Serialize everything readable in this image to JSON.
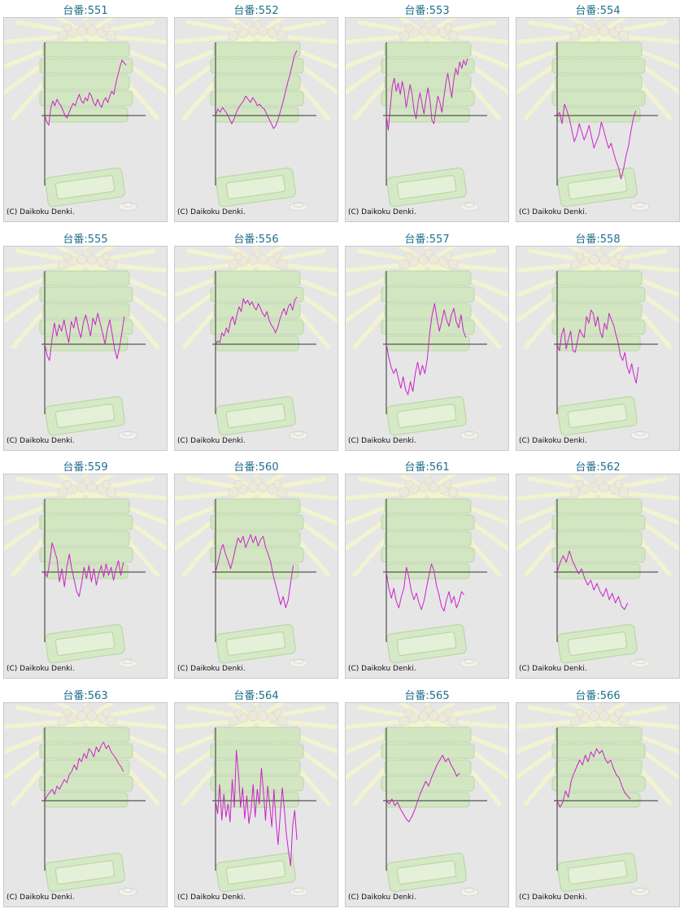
{
  "copyright": "(C) Daikoku Denki.",
  "colors": {
    "line": "#cc22cc",
    "axis": "#333333",
    "title": "#1f6f8b",
    "panel": "#e6e6e6"
  },
  "chart_data": [
    {
      "type": "line",
      "title": "台番:551",
      "ylim": [
        -9,
        9
      ],
      "values": [
        0.0,
        -0.8,
        -1.2,
        1.0,
        1.8,
        1.2,
        2.0,
        1.5,
        1.2,
        0.6,
        0.0,
        -0.3,
        0.4,
        1.0,
        1.5,
        1.2,
        2.0,
        2.6,
        1.8,
        1.5,
        2.2,
        1.8,
        2.8,
        2.4,
        1.6,
        1.2,
        2.0,
        1.4,
        1.0,
        1.8,
        2.2,
        1.6,
        2.4,
        3.0,
        2.6,
        4.0,
        5.0,
        6.0,
        6.8,
        6.5,
        6.2
      ]
    },
    {
      "type": "line",
      "title": "台番:552",
      "ylim": [
        -9,
        9
      ],
      "values": [
        0.0,
        0.8,
        0.4,
        1.0,
        0.6,
        0.2,
        -0.4,
        -1.0,
        -0.4,
        0.4,
        1.0,
        1.4,
        1.8,
        2.4,
        2.0,
        1.6,
        2.2,
        1.8,
        1.2,
        1.4,
        1.0,
        0.8,
        0.2,
        -0.4,
        -1.0,
        -1.6,
        -1.2,
        -0.4,
        0.6,
        1.6,
        2.8,
        4.0,
        5.0,
        6.2,
        7.4,
        8.0
      ]
    },
    {
      "type": "line",
      "title": "台番:553",
      "ylim": [
        -9,
        9
      ],
      "values": [
        0.0,
        -1.8,
        1.0,
        3.6,
        4.6,
        3.0,
        4.0,
        2.6,
        4.2,
        3.0,
        1.0,
        2.4,
        3.8,
        2.6,
        0.6,
        -0.4,
        1.6,
        2.8,
        1.4,
        0.2,
        2.0,
        3.4,
        1.8,
        -0.6,
        -1.0,
        0.8,
        2.4,
        1.6,
        0.4,
        2.2,
        4.0,
        5.2,
        3.6,
        2.2,
        4.4,
        5.8,
        5.0,
        6.6,
        5.8,
        6.8,
        6.2,
        7.0
      ]
    },
    {
      "type": "line",
      "title": "台番:554",
      "ylim": [
        -9,
        9
      ],
      "values": [
        0.0,
        0.4,
        -1.0,
        1.4,
        0.6,
        -0.4,
        -1.8,
        -3.2,
        -2.4,
        -1.0,
        -2.0,
        -3.0,
        -2.2,
        -1.2,
        -2.6,
        -4.0,
        -3.2,
        -2.4,
        -0.8,
        -1.8,
        -3.0,
        -4.0,
        -3.4,
        -4.6,
        -5.6,
        -6.4,
        -7.8,
        -6.6,
        -5.0,
        -3.8,
        -2.0,
        -0.4,
        0.6
      ]
    },
    {
      "type": "line",
      "title": "台番:555",
      "ylim": [
        -9,
        9
      ],
      "values": [
        0.0,
        -1.4,
        -2.0,
        0.6,
        2.6,
        1.0,
        2.4,
        1.6,
        3.0,
        1.4,
        0.2,
        2.8,
        2.0,
        3.4,
        1.8,
        0.8,
        2.6,
        3.6,
        2.4,
        1.0,
        3.2,
        2.4,
        3.8,
        2.6,
        1.4,
        0.0,
        1.8,
        3.0,
        1.2,
        -0.6,
        -1.8,
        -0.4,
        1.4,
        3.4
      ]
    },
    {
      "type": "line",
      "title": "台番:556",
      "ylim": [
        -9,
        9
      ],
      "values": [
        0.0,
        0.4,
        0.2,
        1.4,
        1.0,
        2.0,
        1.4,
        2.8,
        3.4,
        2.4,
        3.6,
        4.6,
        4.0,
        5.6,
        5.0,
        5.4,
        4.8,
        5.2,
        4.6,
        4.2,
        5.0,
        4.4,
        3.8,
        3.4,
        4.0,
        3.0,
        2.4,
        2.0,
        1.4,
        2.0,
        3.0,
        3.8,
        4.4,
        3.6,
        4.6,
        5.0,
        4.2,
        5.4,
        5.8
      ]
    },
    {
      "type": "line",
      "title": "台番:557",
      "ylim": [
        -9,
        9
      ],
      "values": [
        0.0,
        -1.6,
        -2.8,
        -3.6,
        -3.0,
        -4.2,
        -5.4,
        -4.0,
        -5.6,
        -6.2,
        -4.6,
        -5.8,
        -3.6,
        -2.2,
        -3.8,
        -2.6,
        -3.6,
        -1.8,
        1.4,
        3.6,
        5.0,
        3.2,
        1.6,
        2.8,
        4.2,
        3.0,
        2.2,
        3.6,
        4.4,
        2.8,
        2.0,
        3.6,
        1.6,
        0.8
      ]
    },
    {
      "type": "line",
      "title": "台番:558",
      "ylim": [
        -9,
        9
      ],
      "values": [
        0.0,
        -0.8,
        1.2,
        2.0,
        -0.6,
        0.6,
        1.6,
        -0.8,
        -1.0,
        0.4,
        1.8,
        1.2,
        0.8,
        3.4,
        2.6,
        4.2,
        3.8,
        2.2,
        3.4,
        1.6,
        0.8,
        2.6,
        1.8,
        3.8,
        3.0,
        2.4,
        1.2,
        0.2,
        -1.4,
        -2.0,
        -1.0,
        -2.8,
        -3.6,
        -2.4,
        -3.8,
        -4.8,
        -2.8
      ]
    },
    {
      "type": "line",
      "title": "台番:559",
      "ylim": [
        -9,
        9
      ],
      "values": [
        0.0,
        -0.6,
        1.2,
        3.6,
        2.6,
        1.6,
        -1.2,
        0.4,
        -1.8,
        0.6,
        2.2,
        0.4,
        -1.0,
        -2.4,
        -3.0,
        -1.4,
        0.6,
        -0.8,
        0.8,
        -1.2,
        0.4,
        -1.6,
        -0.2,
        0.8,
        -0.6,
        1.0,
        -0.4,
        0.6,
        -1.0,
        0.4,
        1.4,
        -0.4,
        1.2
      ]
    },
    {
      "type": "line",
      "title": "台番:560",
      "ylim": [
        -9,
        9
      ],
      "values": [
        0.0,
        1.2,
        2.6,
        3.4,
        2.2,
        1.4,
        0.4,
        1.6,
        3.0,
        4.2,
        3.6,
        4.4,
        3.0,
        3.8,
        4.6,
        3.6,
        4.4,
        3.2,
        4.0,
        4.4,
        3.0,
        2.2,
        1.2,
        -0.4,
        -1.6,
        -2.8,
        -4.0,
        -3.0,
        -4.4,
        -3.4,
        -1.2,
        0.8
      ]
    },
    {
      "type": "line",
      "title": "台番:561",
      "ylim": [
        -9,
        9
      ],
      "values": [
        0.0,
        -2.0,
        -3.2,
        -2.0,
        -3.6,
        -4.4,
        -3.0,
        -2.0,
        0.6,
        -0.6,
        -2.4,
        -3.4,
        -2.6,
        -3.8,
        -4.6,
        -3.6,
        -2.0,
        -0.4,
        1.0,
        0.2,
        -1.6,
        -2.8,
        -4.2,
        -4.8,
        -3.4,
        -2.4,
        -3.8,
        -3.0,
        -4.4,
        -3.6,
        -2.4,
        -2.8
      ]
    },
    {
      "type": "line",
      "title": "台番:562",
      "ylim": [
        -9,
        9
      ],
      "values": [
        0.0,
        1.2,
        2.0,
        1.2,
        2.6,
        1.4,
        0.6,
        -0.2,
        0.4,
        -0.8,
        -1.6,
        -1.0,
        -2.2,
        -1.4,
        -2.4,
        -3.0,
        -2.0,
        -3.4,
        -2.6,
        -3.8,
        -3.0,
        -4.2,
        -4.6,
        -3.8
      ]
    },
    {
      "type": "line",
      "title": "台番:563",
      "ylim": [
        -9,
        9
      ],
      "values": [
        0.0,
        0.6,
        1.0,
        1.4,
        0.8,
        1.8,
        1.4,
        2.0,
        2.6,
        2.2,
        3.2,
        3.6,
        4.4,
        3.8,
        5.2,
        4.8,
        5.8,
        5.2,
        6.4,
        6.0,
        5.4,
        6.6,
        6.0,
        6.8,
        7.2,
        6.4,
        6.8,
        6.0,
        5.6,
        5.2,
        4.6,
        4.2,
        3.6
      ]
    },
    {
      "type": "line",
      "title": "台番:564",
      "ylim": [
        -9,
        9
      ],
      "values": [
        0.0,
        -1.6,
        2.0,
        -2.4,
        0.8,
        -2.0,
        -0.4,
        -2.6,
        2.6,
        -0.8,
        6.2,
        3.4,
        -0.8,
        1.6,
        -2.2,
        0.6,
        -2.8,
        -1.2,
        2.0,
        -2.0,
        1.4,
        -0.4,
        4.0,
        1.0,
        -2.4,
        1.8,
        -0.6,
        -3.2,
        1.4,
        -2.6,
        -5.4,
        -1.8,
        1.6,
        -1.0,
        -4.2,
        -6.2,
        -8.0,
        -3.0,
        -1.2,
        -4.8
      ]
    },
    {
      "type": "line",
      "title": "台番:565",
      "ylim": [
        -9,
        9
      ],
      "values": [
        0.0,
        -0.4,
        0.2,
        -0.6,
        -0.2,
        -1.0,
        -1.6,
        -2.2,
        -2.6,
        -2.0,
        -1.2,
        -0.2,
        0.8,
        1.6,
        2.4,
        1.8,
        2.8,
        3.6,
        4.4,
        5.0,
        5.6,
        4.8,
        5.2,
        4.4,
        3.8,
        3.0,
        3.4
      ]
    },
    {
      "type": "line",
      "title": "台番:566",
      "ylim": [
        -9,
        9
      ],
      "values": [
        0.0,
        -0.8,
        -0.2,
        1.2,
        0.4,
        2.4,
        3.4,
        4.2,
        5.0,
        4.4,
        5.6,
        4.8,
        6.0,
        5.4,
        6.4,
        5.8,
        6.2,
        5.2,
        4.6,
        5.0,
        4.0,
        3.2,
        2.8,
        1.8,
        1.0,
        0.6,
        0.2
      ]
    }
  ]
}
